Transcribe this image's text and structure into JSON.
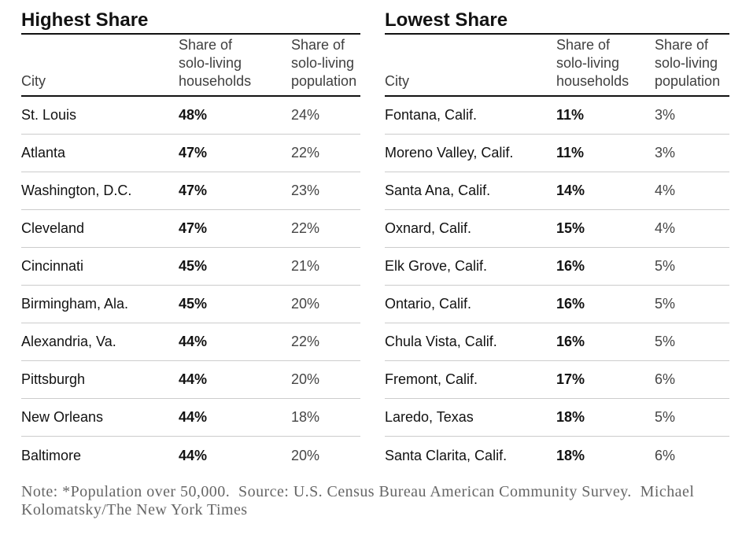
{
  "chart_data": [
    {
      "type": "table",
      "title": "Highest Share",
      "columns": [
        "City",
        "Share of\nsolo-living\nhouseholds",
        "Share of\nsolo-living\npopulation"
      ],
      "unit": "%",
      "rows": [
        [
          "St. Louis",
          48,
          24
        ],
        [
          "Atlanta",
          47,
          22
        ],
        [
          "Washington, D.C.",
          47,
          23
        ],
        [
          "Cleveland",
          47,
          22
        ],
        [
          "Cincinnati",
          45,
          21
        ],
        [
          "Birmingham, Ala.",
          45,
          20
        ],
        [
          "Alexandria, Va.",
          44,
          22
        ],
        [
          "Pittsburgh",
          44,
          20
        ],
        [
          "New Orleans",
          44,
          18
        ],
        [
          "Baltimore",
          44,
          20
        ]
      ]
    },
    {
      "type": "table",
      "title": "Lowest Share",
      "columns": [
        "City",
        "Share of\nsolo-living\nhouseholds",
        "Share of\nsolo-living\npopulation"
      ],
      "unit": "%",
      "rows": [
        [
          "Fontana, Calif.",
          11,
          3
        ],
        [
          "Moreno Valley, Calif.",
          11,
          3
        ],
        [
          "Santa Ana, Calif.",
          14,
          4
        ],
        [
          "Oxnard, Calif.",
          15,
          4
        ],
        [
          "Elk Grove, Calif.",
          16,
          5
        ],
        [
          "Ontario, Calif.",
          16,
          5
        ],
        [
          "Chula Vista, Calif.",
          16,
          5
        ],
        [
          "Fremont, Calif.",
          17,
          6
        ],
        [
          "Laredo, Texas",
          18,
          5
        ],
        [
          "Santa Clarita, Calif.",
          18,
          6
        ]
      ]
    }
  ],
  "note": "Note: *Population over 50,000.  Source: U.S. Census Bureau American Community Survey.  Michael\nKolomatsky/The New York Times",
  "colors": {
    "text": "#121212",
    "header_text": "#3f3f3f",
    "population_text": "#454545",
    "rule": "#121212",
    "row_separator": "#cccccc",
    "note_text": "#666666"
  }
}
